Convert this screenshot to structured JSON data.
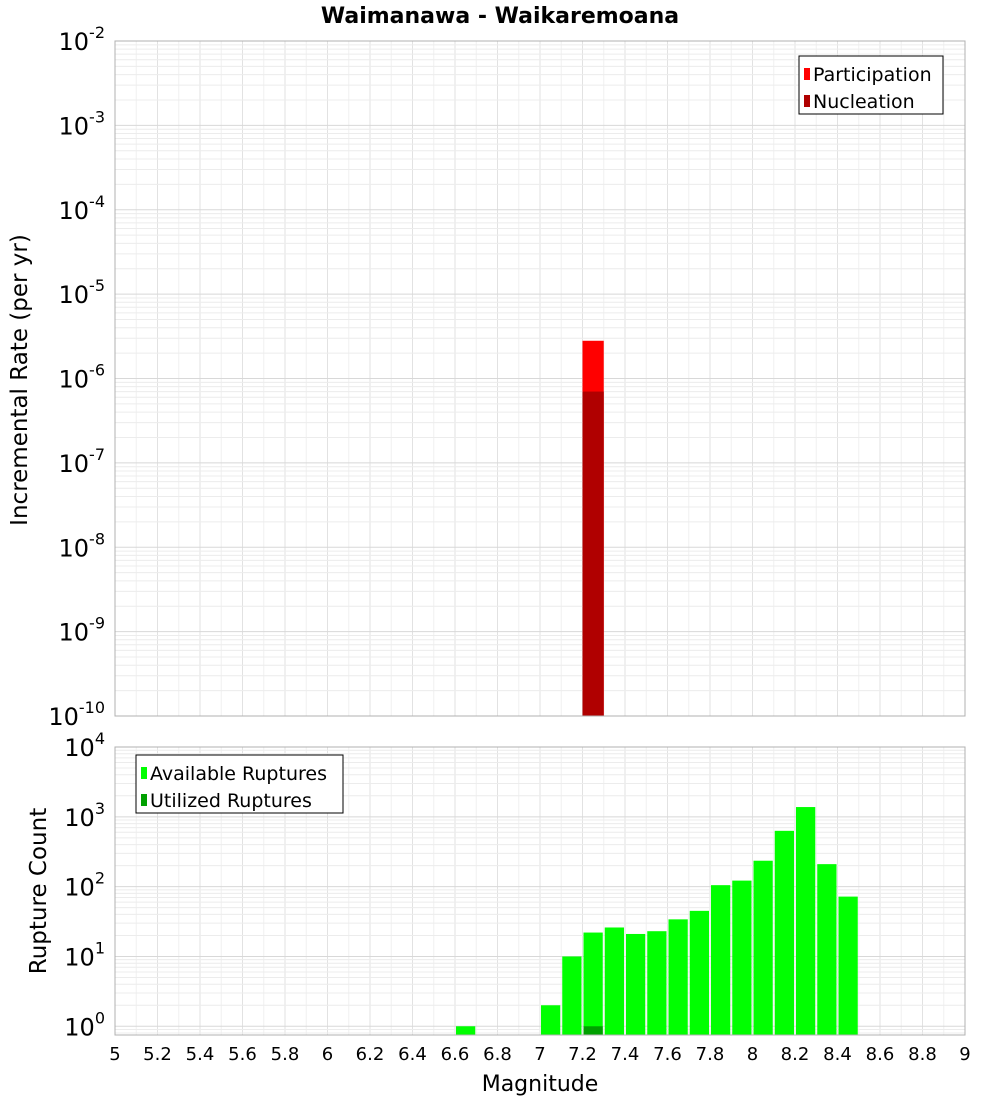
{
  "chart_data": [
    {
      "type": "bar",
      "title": "Waimanawa - Waikaremoana",
      "xlabel": "",
      "ylabel": "Incremental Rate (per yr)",
      "xlim": [
        5,
        9
      ],
      "ylim": [
        1e-10,
        0.01
      ],
      "yscale": "log",
      "ytick_exponents": [
        "-10",
        "-9",
        "-8",
        "-7",
        "-6",
        "-5",
        "-4",
        "-3",
        "-2"
      ],
      "grid": true,
      "legend_position": "top-right",
      "bin_width": 0.1,
      "series": [
        {
          "name": "Participation",
          "color": "#ff0000",
          "points": [
            {
              "x": 7.25,
              "y": 2.8e-06
            }
          ]
        },
        {
          "name": "Nucleation",
          "color": "#b00000",
          "points": [
            {
              "x": 7.25,
              "y": 7e-07
            }
          ]
        }
      ]
    },
    {
      "type": "bar",
      "title": "",
      "xlabel": "Magnitude",
      "ylabel": "Rupture Count",
      "xlim": [
        5,
        9
      ],
      "ylim": [
        0.75,
        10000
      ],
      "yscale": "log",
      "ytick_exponents": [
        "0",
        "1",
        "2",
        "3",
        "4"
      ],
      "xtick_labels": [
        "5",
        "5.2",
        "5.4",
        "5.6",
        "5.8",
        "6",
        "6.2",
        "6.4",
        "6.6",
        "6.8",
        "7",
        "7.2",
        "7.4",
        "7.6",
        "7.8",
        "8",
        "8.2",
        "8.4",
        "8.6",
        "8.8",
        "9"
      ],
      "grid": true,
      "legend_position": "top-left",
      "bin_width": 0.1,
      "series": [
        {
          "name": "Available Ruptures",
          "color": "#00ff00",
          "points": [
            {
              "x": 6.65,
              "y": 1
            },
            {
              "x": 7.05,
              "y": 2
            },
            {
              "x": 7.15,
              "y": 10
            },
            {
              "x": 7.25,
              "y": 22
            },
            {
              "x": 7.35,
              "y": 26
            },
            {
              "x": 7.45,
              "y": 21
            },
            {
              "x": 7.55,
              "y": 23
            },
            {
              "x": 7.65,
              "y": 34
            },
            {
              "x": 7.75,
              "y": 45
            },
            {
              "x": 7.85,
              "y": 105
            },
            {
              "x": 7.95,
              "y": 122
            },
            {
              "x": 8.05,
              "y": 235
            },
            {
              "x": 8.15,
              "y": 630
            },
            {
              "x": 8.25,
              "y": 1380
            },
            {
              "x": 8.35,
              "y": 210
            },
            {
              "x": 8.45,
              "y": 72
            }
          ]
        },
        {
          "name": "Utilized Ruptures",
          "color": "#00a000",
          "points": [
            {
              "x": 7.25,
              "y": 1
            }
          ]
        }
      ]
    }
  ]
}
